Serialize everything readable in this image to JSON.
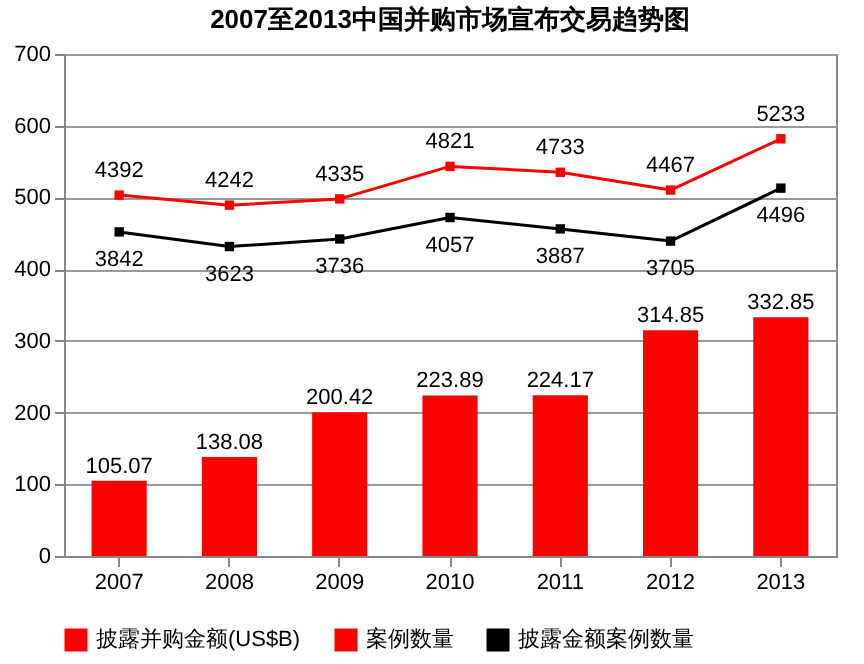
{
  "chart_data": {
    "type": "bar",
    "title": "2007至2013中国并购市场宣布交易趋势图",
    "categories": [
      "2007",
      "2008",
      "2009",
      "2010",
      "2011",
      "2012",
      "2013"
    ],
    "series": [
      {
        "name": "披露并购金额(US$B)",
        "color": "#ff0000",
        "values": [
          105.07,
          138.08,
          200.42,
          223.89,
          224.17,
          314.85,
          332.85
        ]
      },
      {
        "name": "案例数量",
        "type": "line",
        "axis": "y2",
        "color": "#ff0000",
        "values": [
          4392,
          4242,
          4335,
          4821,
          4733,
          4467,
          5233
        ]
      },
      {
        "name": "披露金额案例数量",
        "type": "line",
        "axis": "y2",
        "color": "#000000",
        "values": [
          3842,
          3623,
          3736,
          4057,
          3887,
          3705,
          4496
        ]
      }
    ],
    "ylim": [
      0,
      700
    ],
    "yticks": [
      0,
      100,
      200,
      300,
      400,
      500,
      600,
      700
    ],
    "y2lim": [
      -1000,
      6500
    ],
    "grid": "y",
    "legend": "bottom",
    "marker": "square",
    "data_labels": true
  }
}
